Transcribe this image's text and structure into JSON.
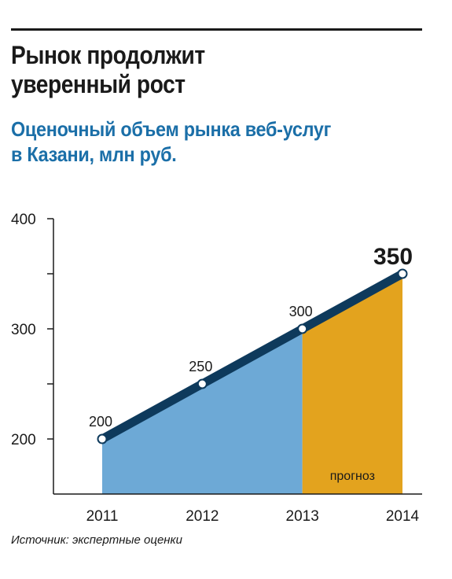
{
  "header": {
    "title_line1": "Рынок продолжит",
    "title_line2": "уверенный рост",
    "subtitle_line1": "Оценочный объем рынка веб-услуг",
    "subtitle_line2": "в Казани, млн руб."
  },
  "footer": {
    "source": "Источник: экспертные оценки"
  },
  "colors": {
    "subtitle": "#1b6fa8",
    "line": "#0e3a5c",
    "area_actual": "#6da9d6",
    "area_forecast": "#e3a31e",
    "axis": "#1a1a1a"
  },
  "chart_data": {
    "type": "area",
    "x": [
      "2011",
      "2012",
      "2013",
      "2014"
    ],
    "values": [
      200,
      250,
      300,
      350
    ],
    "data_labels": [
      "200",
      "250",
      "300",
      "350"
    ],
    "ylim": [
      150,
      400
    ],
    "yticks_labeled": [
      200,
      300,
      400
    ],
    "yticks_minor": [
      250,
      350
    ],
    "forecast_from": "2013",
    "forecast_label": "прогноз",
    "grid": false,
    "legend": "none"
  }
}
